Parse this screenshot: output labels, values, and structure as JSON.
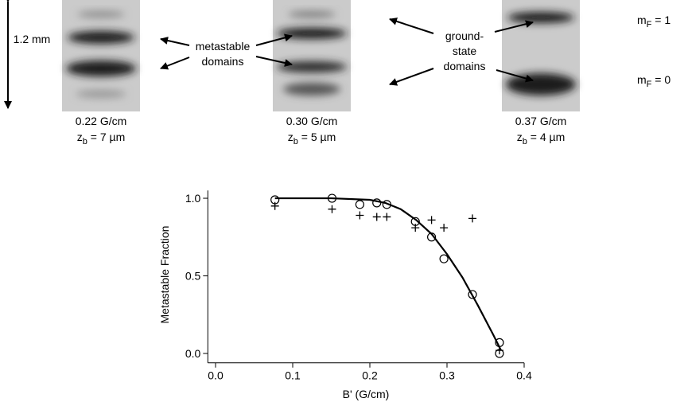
{
  "scale_bar": "1.2 mm",
  "labels": {
    "metastable": [
      "metastable",
      "domains"
    ],
    "ground_state": [
      "ground-",
      "state",
      "domains"
    ],
    "mF": [
      {
        "symbol": "m",
        "sub": "F",
        "rest": " = 1"
      },
      {
        "symbol": "m",
        "sub": "F",
        "rest": " = 0"
      }
    ]
  },
  "images": [
    {
      "field": "0.22 G/cm",
      "depth": {
        "symbol": "z",
        "sub": "b",
        "rest": " = 7 µm"
      }
    },
    {
      "field": "0.30 G/cm",
      "depth": {
        "symbol": "z",
        "sub": "b",
        "rest": " = 5 µm"
      }
    },
    {
      "field": "0.37 G/cm",
      "depth": {
        "symbol": "z",
        "sub": "b",
        "rest": " = 4 µm"
      }
    }
  ],
  "chart_data": {
    "type": "scatter",
    "x_label": "B' (G/cm)",
    "y_label": "Metastable Fraction",
    "xlim": [
      -0.01,
      0.4
    ],
    "ylim": [
      -0.06,
      1.05
    ],
    "xticks": [
      {
        "value": 0,
        "label": "0.0"
      },
      0.1,
      0.2,
      0.3,
      0.4
    ],
    "yticks": [
      {
        "value": 0,
        "label": "0.0"
      },
      0.5,
      {
        "value": 1,
        "label": "1.0"
      }
    ],
    "series": [
      {
        "marker": "circle",
        "color": "#000000",
        "x": [
          0.077,
          0.151,
          0.187,
          0.209,
          0.222,
          0.259,
          0.28,
          0.296,
          0.333,
          0.368,
          0.368
        ],
        "values": [
          0.99,
          1.0,
          0.96,
          0.97,
          0.96,
          0.85,
          0.75,
          0.61,
          0.38,
          0.07,
          0.0
        ]
      },
      {
        "marker": "plus",
        "color": "#000000",
        "x": [
          0.077,
          0.151,
          0.187,
          0.209,
          0.222,
          0.259,
          0.28,
          0.296,
          0.333,
          0.368
        ],
        "values": [
          0.95,
          0.93,
          0.89,
          0.88,
          0.88,
          0.81,
          0.86,
          0.81,
          0.87,
          0.02
        ]
      },
      {
        "marker": "line",
        "color": "#000000",
        "x": [
          0.077,
          0.15,
          0.2,
          0.22,
          0.24,
          0.26,
          0.28,
          0.3,
          0.32,
          0.34,
          0.36,
          0.37
        ],
        "values": [
          1.0,
          1.0,
          0.99,
          0.97,
          0.93,
          0.86,
          0.77,
          0.64,
          0.49,
          0.31,
          0.12,
          0.02
        ]
      }
    ]
  }
}
